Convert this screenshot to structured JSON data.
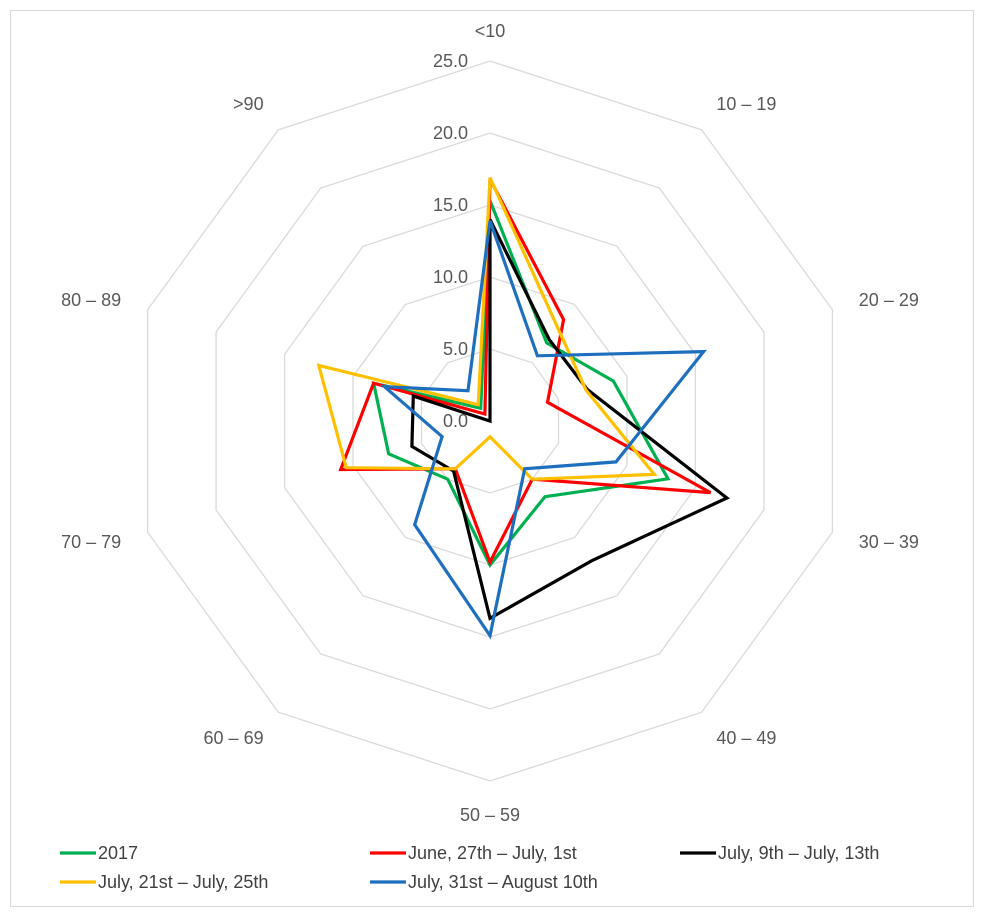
{
  "chart_data": {
    "type": "radar",
    "title": "",
    "categories": [
      "<10",
      "10 – 19",
      "20 – 29",
      "30 – 39",
      "40 – 49",
      "50 – 59",
      "60 – 69",
      "70 – 79",
      "80 – 89",
      ">90"
    ],
    "rlim": [
      0,
      25
    ],
    "ticks": [
      "0.0",
      "5.0",
      "10.0",
      "15.0",
      "20.0",
      "25.0"
    ],
    "grid": true,
    "legend_position": "bottom",
    "series": [
      {
        "name": "2017",
        "color": "#00b050",
        "values": [
          15.3,
          6.7,
          9.0,
          13.0,
          6.5,
          10.0,
          5.0,
          7.4,
          8.5,
          1.1
        ]
      },
      {
        "name": "June, 27th – July, 1st",
        "color": "#ff0000",
        "values": [
          16.8,
          8.7,
          4.2,
          16.1,
          5.0,
          9.8,
          4.1,
          10.9,
          8.5,
          0.6
        ]
      },
      {
        "name": "July, 9th – July, 13th",
        "color": "#000000",
        "values": [
          14.0,
          7.0,
          7.1,
          17.3,
          12.0,
          13.7,
          4.3,
          5.7,
          5.6,
          0.0
        ]
      },
      {
        "name": "July, 21st – July, 25th",
        "color": "#ffc000",
        "values": [
          16.9,
          8.0,
          7.0,
          12.0,
          5.0,
          1.1,
          4.1,
          10.5,
          12.5,
          1.4
        ]
      },
      {
        "name": "July, 31st – August 10th",
        "color": "#1f6fbf",
        "values": [
          13.9,
          5.6,
          15.6,
          9.2,
          4.1,
          14.9,
          8.9,
          3.5,
          7.7,
          2.6
        ]
      }
    ]
  }
}
